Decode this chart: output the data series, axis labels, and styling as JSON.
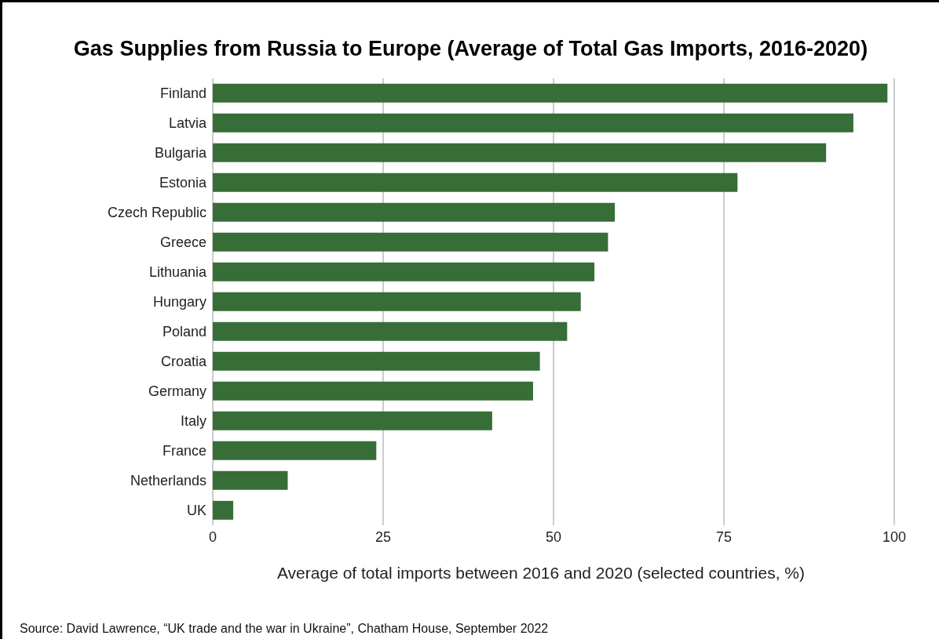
{
  "chart_data": {
    "type": "bar",
    "orientation": "horizontal",
    "title": "Gas Supplies from Russia to Europe (Average of Total Gas Imports, 2016-2020)",
    "xlabel": "Average of total imports between 2016 and 2020 (selected countries, %)",
    "categories": [
      "Finland",
      "Latvia",
      "Bulgaria",
      "Estonia",
      "Czech Republic",
      "Greece",
      "Lithuania",
      "Hungary",
      "Poland",
      "Croatia",
      "Germany",
      "Italy",
      "France",
      "Netherlands",
      "UK"
    ],
    "values": [
      99,
      94,
      90,
      77,
      59,
      58,
      56,
      54,
      52,
      48,
      47,
      41,
      24,
      11,
      3
    ],
    "color": "#376d37",
    "xlim": [
      0,
      100
    ],
    "xticks": [
      0,
      25,
      50,
      75,
      100
    ],
    "grid": "x",
    "annotations": [
      "Source: David Lawrence, “UK trade and the war in Ukraine”, Chatham House, September 2022"
    ]
  }
}
